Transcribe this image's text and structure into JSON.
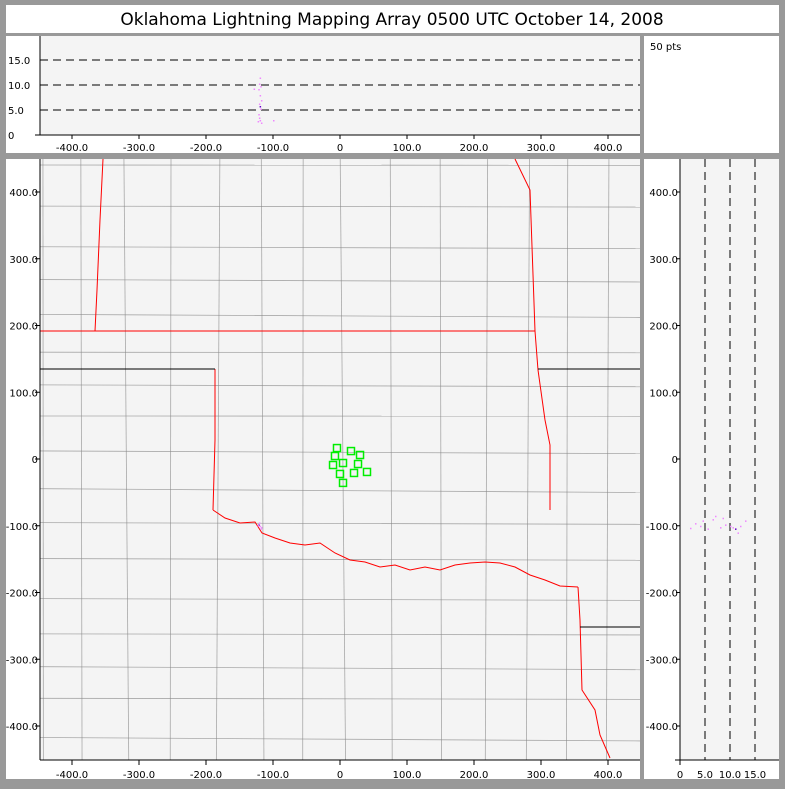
{
  "title": "Oklahoma Lightning Mapping Array   0500 UTC  October 14, 2008",
  "point_count_label": "50 pts",
  "colors": {
    "state_border": "#ff0000",
    "county_border": "#888888",
    "station": "#00ee00",
    "source": "#ee88ff",
    "source_dense": "#6600cc",
    "panel_bg": "#f4f4f4",
    "frame": "#999999"
  },
  "chart_data": [
    {
      "type": "scatter",
      "panel": "plan-view",
      "xlim": [
        -450,
        450
      ],
      "ylim": [
        -450,
        450
      ],
      "xticks": [
        "-400.0",
        "-300.0",
        "-200.0",
        "-100.0",
        "0",
        "100.0",
        "200.0",
        "300.0",
        "400.0"
      ],
      "yticks": [
        "-400.0",
        "-300.0",
        "-200.0",
        "-100.0",
        "0",
        "100.0",
        "200.0",
        "300.0",
        "400.0"
      ],
      "stations": {
        "x": [
          -4.5,
          16.4,
          29.9,
          -7.5,
          4.5,
          -10.4,
          26.9,
          0,
          20.9,
          40.3,
          4.5
        ],
        "y": [
          16.4,
          11.9,
          6,
          4.5,
          -6,
          -9,
          -7.5,
          -22.4,
          -20.9,
          -19.4,
          -35.8
        ]
      },
      "sources": {
        "x": [
          -122,
          -120,
          -118,
          -121,
          -119,
          -123
        ],
        "y": [
          -98,
          -100,
          -102,
          -95,
          -104,
          -99
        ]
      }
    },
    {
      "type": "scatter",
      "panel": "altitude-vs-east-west",
      "xlim": [
        -450,
        450
      ],
      "ylim": [
        0,
        20
      ],
      "xticks": [
        "-400.0",
        "-300.0",
        "-200.0",
        "-100.0",
        "0",
        "100.0",
        "200.0",
        "300.0",
        "400.0"
      ],
      "yticks": [
        "0",
        "5.0",
        "10.0",
        "15.0"
      ],
      "grid": "dashed at 5, 10, 15",
      "sources": {
        "x": [
          -120,
          -121,
          -119,
          -122,
          -120,
          -118,
          -121,
          -120,
          -119,
          -122,
          -121,
          -120,
          -123,
          -118,
          -100,
          -129
        ],
        "z": [
          11.5,
          10.3,
          9.8,
          9.2,
          8,
          7,
          6.3,
          5.8,
          5.3,
          4.2,
          3.5,
          3,
          2.8,
          2.5,
          3,
          9.3
        ]
      }
    },
    {
      "type": "scatter",
      "panel": "altitude-vs-north-south",
      "xlim": [
        0,
        20
      ],
      "ylim": [
        -450,
        450
      ],
      "xticks": [
        "0",
        "5.0",
        "10.0",
        "15.0"
      ],
      "yticks": [
        "-400.0",
        "-300.0",
        "-200.0",
        "-100.0",
        "0",
        "100.0",
        "200.0",
        "300.0",
        "400.0"
      ],
      "grid": "dashed at 5, 10, 15",
      "sources": {
        "z": [
          3,
          4,
          5.5,
          6.5,
          7,
          8,
          9,
          10,
          11,
          12,
          13,
          2,
          4.5,
          8.5,
          10.5,
          11.5
        ],
        "y": [
          -96,
          -100,
          -104,
          -90,
          -85,
          -102,
          -98,
          -100,
          -104,
          -100,
          -92,
          -103,
          -92,
          -88,
          -102,
          -110
        ]
      }
    }
  ]
}
